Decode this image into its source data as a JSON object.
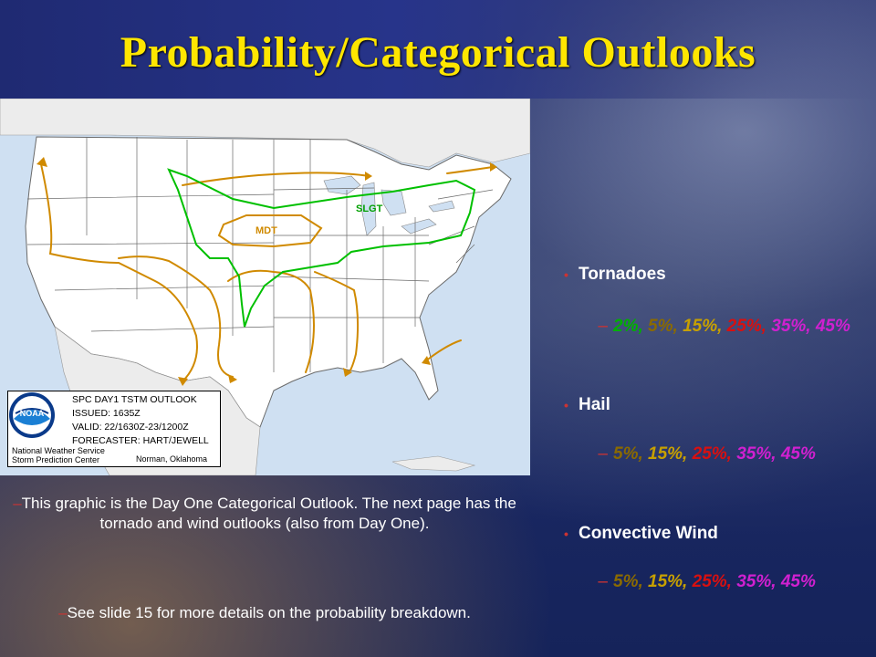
{
  "slide": {
    "title": "Probability/Categorical Outlooks"
  },
  "map": {
    "labels": {
      "slgt": "SLGT",
      "mdt": "MDT"
    },
    "legend": {
      "line1": "SPC DAY1 TSTM OUTLOOK",
      "line2": "ISSUED: 1635Z",
      "line3": "VALID: 22/1630Z-23/1200Z",
      "line4": "FORECASTER: HART/JEWELL",
      "org1": "National Weather Service",
      "org2": "Storm Prediction Center",
      "city": "Norman, Oklahoma",
      "logo": "NOAA"
    },
    "colors": {
      "slgt_line": "#00c000",
      "mdt_line": "#d08a00",
      "tstm_line": "#d08a00"
    }
  },
  "caption": {
    "dash": "–",
    "para1": "This graphic is the Day One Categorical Outlook. The next page has the tornado and wind outlooks (also from Day One).",
    "para2": "See slide 15 for more details on the probability breakdown."
  },
  "bullets": [
    {
      "label": "Tornadoes",
      "values": [
        {
          "text": "2%,",
          "color": "#00b000"
        },
        {
          "text": "5%,",
          "color": "#8a6a00"
        },
        {
          "text": "15%,",
          "color": "#c7a000"
        },
        {
          "text": "25%,",
          "color": "#d81010"
        },
        {
          "text": "35%,",
          "color": "#d020d0"
        },
        {
          "text": "45%",
          "color": "#d020d0"
        }
      ]
    },
    {
      "label": "Hail",
      "values": [
        {
          "text": "5%,",
          "color": "#8a6a00"
        },
        {
          "text": "15%,",
          "color": "#c7a000"
        },
        {
          "text": "25%,",
          "color": "#d81010"
        },
        {
          "text": "35%,",
          "color": "#d020d0"
        },
        {
          "text": "45%",
          "color": "#d020d0"
        }
      ]
    },
    {
      "label": "Convective Wind",
      "values": [
        {
          "text": "5%,",
          "color": "#8a6a00"
        },
        {
          "text": "15%,",
          "color": "#c7a000"
        },
        {
          "text": "25%,",
          "color": "#d81010"
        },
        {
          "text": "35%,",
          "color": "#d020d0"
        },
        {
          "text": "45%",
          "color": "#d020d0"
        }
      ]
    }
  ]
}
